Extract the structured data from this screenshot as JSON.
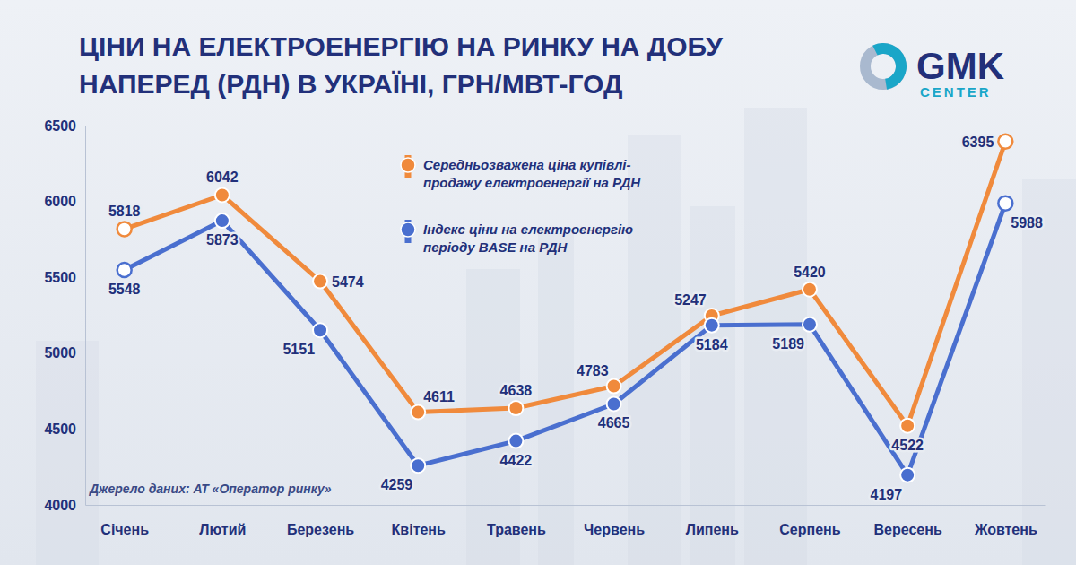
{
  "chart_data": {
    "type": "line",
    "title": "ЦІНИ НА ЕЛЕКТРОЕНЕРГІЮ НА РИНКУ НА ДОБУ НАПЕРЕД (РДН) В УКРАЇНІ, ГРН/МВТ-ГОД",
    "source": "Джерело даних: АТ «Оператор ринку»",
    "logo": "GMK CENTER",
    "categories": [
      "Січень",
      "Лютий",
      "Березень",
      "Квітень",
      "Травень",
      "Червень",
      "Липень",
      "Серпень",
      "Вересень",
      "Жовтень"
    ],
    "series": [
      {
        "name": "Середньозважена ціна купівлі-продажу електроенергії на РДН",
        "color": "#f08a3c",
        "values": [
          5818,
          6042,
          5474,
          4611,
          4638,
          4783,
          5247,
          5420,
          4522,
          6395
        ]
      },
      {
        "name": "Індекс ціни на електроенергію періоду BASE на РДН",
        "color": "#4a6fcf",
        "values": [
          5548,
          5873,
          5151,
          4259,
          4422,
          4665,
          5184,
          5189,
          4197,
          5988
        ]
      }
    ],
    "ylim": [
      4000,
      6500
    ],
    "yticks": [
      4000,
      4500,
      5000,
      5500,
      6000,
      6500
    ],
    "grid": false,
    "legend": "top",
    "data_labels": true,
    "marker": "circle"
  }
}
